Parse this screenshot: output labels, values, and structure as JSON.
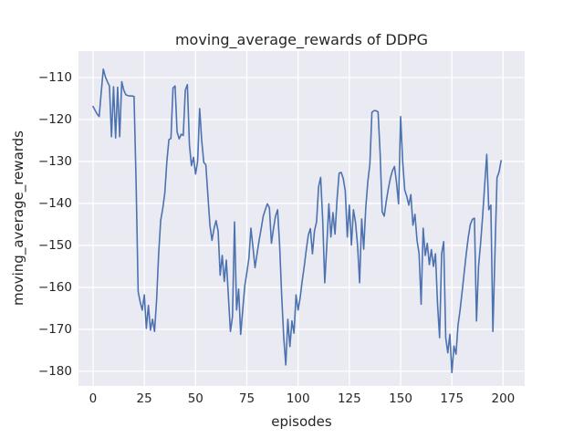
{
  "figure": {
    "title": "moving_average_rewards of DDPG",
    "xlabel": "episodes",
    "ylabel": "moving_average_rewards"
  },
  "chart_data": {
    "type": "line",
    "title": "moving_average_rewards of DDPG",
    "xlabel": "episodes",
    "ylabel": "moving_average_rewards",
    "legend": false,
    "grid": true,
    "x_ticks": [
      0,
      25,
      50,
      75,
      100,
      125,
      150,
      175,
      200
    ],
    "y_ticks": [
      -180,
      -170,
      -160,
      -150,
      -140,
      -130,
      -120,
      -110
    ],
    "xlim": [
      -7.1,
      210.5
    ],
    "ylim": [
      -183.5,
      -103.7
    ],
    "line_color": "#4c72b0",
    "axes_background": "#eaeaf2",
    "grid_color": "#ffffff",
    "x_start": 0,
    "x_step": 1,
    "values": [
      -116.9,
      -117.8,
      -118.7,
      -119.3,
      -113.5,
      -108.0,
      -109.8,
      -111.0,
      -112.0,
      -124.1,
      -112.2,
      -124.4,
      -112.3,
      -124.1,
      -111.0,
      -113.0,
      -114.1,
      -114.3,
      -114.4,
      -114.4,
      -114.5,
      -135.0,
      -161.0,
      -163.5,
      -165.4,
      -161.8,
      -169.8,
      -164.3,
      -170.2,
      -167.6,
      -170.5,
      -163.0,
      -152.0,
      -144.0,
      -141.2,
      -137.5,
      -130.0,
      -124.8,
      -124.5,
      -112.5,
      -112.0,
      -123.0,
      -124.6,
      -123.5,
      -123.8,
      -113.0,
      -111.7,
      -126.0,
      -131.0,
      -129.0,
      -133.0,
      -130.0,
      -117.4,
      -125.0,
      -130.2,
      -130.8,
      -138.0,
      -145.2,
      -148.8,
      -146.0,
      -144.1,
      -146.6,
      -157.1,
      -152.4,
      -158.6,
      -153.5,
      -162.0,
      -170.5,
      -167.0,
      -144.4,
      -165.4,
      -160.4,
      -171.2,
      -165.4,
      -159.6,
      -156.5,
      -153.1,
      -145.9,
      -150.5,
      -155.3,
      -152.0,
      -148.8,
      -146.0,
      -143.0,
      -141.5,
      -140.1,
      -141.0,
      -149.5,
      -146.0,
      -143.0,
      -141.5,
      -150.0,
      -162.0,
      -172.0,
      -178.5,
      -167.6,
      -174.1,
      -168.0,
      -170.9,
      -161.8,
      -165.4,
      -162.5,
      -158.5,
      -155.0,
      -151.0,
      -147.5,
      -146.0,
      -152.0,
      -146.5,
      -144.4,
      -136.0,
      -133.8,
      -144.0,
      -158.9,
      -150.0,
      -140.1,
      -148.0,
      -142.2,
      -147.3,
      -139.0,
      -132.8,
      -132.6,
      -134.0,
      -137.0,
      -148.0,
      -140.4,
      -149.9,
      -141.5,
      -144.5,
      -150.0,
      -158.9,
      -143.7,
      -150.9,
      -141.0,
      -134.8,
      -130.7,
      -118.3,
      -117.9,
      -117.9,
      -118.2,
      -128.0,
      -142.0,
      -143.0,
      -139.5,
      -136.5,
      -134.0,
      -132.2,
      -131.2,
      -135.0,
      -140.1,
      -119.3,
      -130.0,
      -136.8,
      -138.3,
      -140.4,
      -137.9,
      -145.2,
      -142.6,
      -148.8,
      -152.0,
      -164.0,
      -145.9,
      -152.4,
      -149.5,
      -154.6,
      -151.0,
      -155.0,
      -152.0,
      -164.0,
      -172.0,
      -152.0,
      -149.1,
      -172.0,
      -175.6,
      -171.2,
      -180.3,
      -174.0,
      -175.9,
      -169.0,
      -165.4,
      -161.0,
      -156.5,
      -152.0,
      -148.0,
      -145.0,
      -143.8,
      -143.5,
      -168.0,
      -155.0,
      -149.5,
      -143.0,
      -135.5,
      -128.3,
      -141.5,
      -140.4,
      -170.5,
      -152.0,
      -133.9,
      -132.5,
      -129.8
    ]
  }
}
